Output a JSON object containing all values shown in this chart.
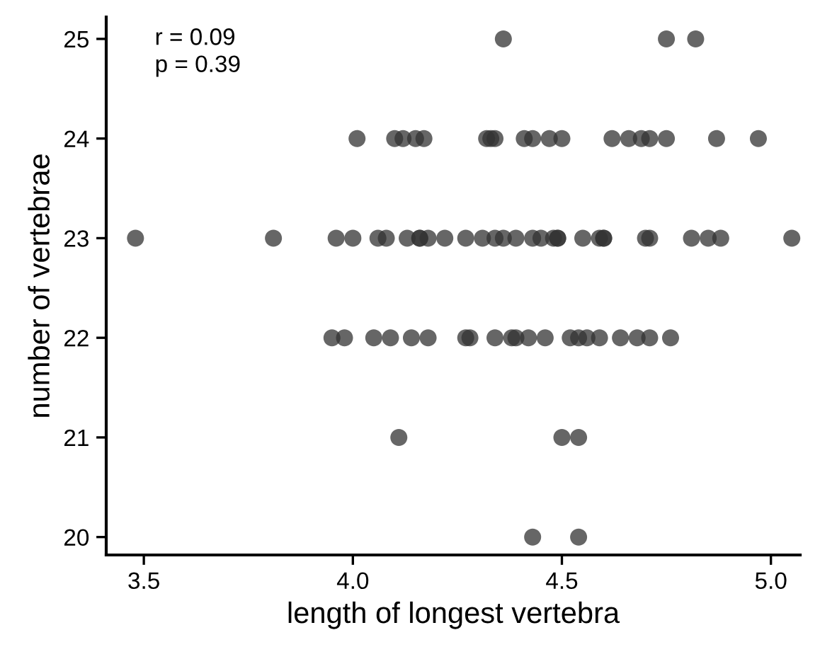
{
  "chart_data": {
    "type": "scatter",
    "xlabel": "length of longest vertebra",
    "ylabel": "number of vertebrae",
    "annotations": [
      "r = 0.09\np = 0.39"
    ],
    "series": [
      {
        "color": "#333333",
        "x": [
          4.01,
          4.1,
          4.12,
          4.15,
          4.17,
          4.32,
          4.33,
          4.34,
          4.41,
          4.43,
          4.47,
          4.5,
          4.62,
          4.66,
          4.69,
          4.71,
          4.75,
          4.87,
          4.97,
          3.48,
          3.81,
          3.96,
          4.0,
          4.06,
          4.08,
          4.13,
          4.16,
          4.16,
          4.18,
          4.22,
          4.27,
          4.31,
          4.34,
          4.36,
          4.39,
          4.43,
          4.45,
          4.48,
          4.49,
          4.49,
          4.55,
          4.59,
          4.6,
          4.6,
          4.7,
          4.71,
          4.81,
          4.85,
          4.88,
          5.05,
          3.95,
          3.98,
          4.05,
          4.09,
          4.14,
          4.18,
          4.27,
          4.28,
          4.34,
          4.38,
          4.39,
          4.42,
          4.46,
          4.52,
          4.54,
          4.56,
          4.59,
          4.64,
          4.68,
          4.71,
          4.76,
          4.36,
          4.75,
          4.82,
          4.11,
          4.5,
          4.54,
          4.43,
          4.54
        ],
        "values": [
          24,
          24,
          24,
          24,
          24,
          24,
          24,
          24,
          24,
          24,
          24,
          24,
          24,
          24,
          24,
          24,
          24,
          24,
          24,
          23,
          23,
          23,
          23,
          23,
          23,
          23,
          23,
          23,
          23,
          23,
          23,
          23,
          23,
          23,
          23,
          23,
          23,
          23,
          23,
          23,
          23,
          23,
          23,
          23,
          23,
          23,
          23,
          23,
          23,
          23,
          22,
          22,
          22,
          22,
          22,
          22,
          22,
          22,
          22,
          22,
          22,
          22,
          22,
          22,
          22,
          22,
          22,
          22,
          22,
          22,
          22,
          25,
          25,
          25,
          21,
          21,
          21,
          20,
          20
        ]
      }
    ],
    "xlim": [
      3.41,
      5.07
    ],
    "xticks": [
      {
        "value": 3.5,
        "label": "3.5"
      },
      {
        "value": 4.0,
        "label": "4.0"
      },
      {
        "value": 4.5,
        "label": "4.5"
      },
      {
        "value": 5.0,
        "label": "5.0"
      }
    ],
    "ylim": [
      19.82,
      25.22
    ],
    "yticks": [
      20,
      21,
      22,
      23,
      24,
      25
    ],
    "grid": false,
    "legend": false,
    "marker": "circle"
  }
}
